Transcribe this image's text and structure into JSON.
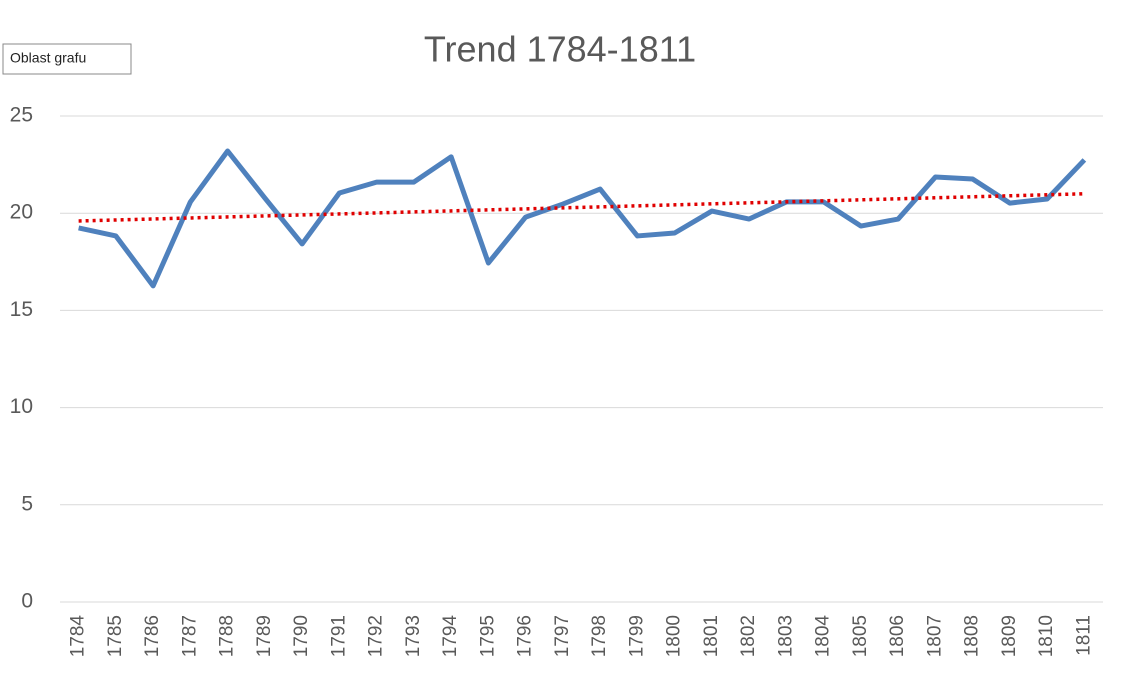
{
  "chart_data": {
    "type": "line",
    "title": "Trend 1784-1811",
    "tooltip": "Oblast grafu",
    "categories": [
      "1784",
      "1785",
      "1786",
      "1787",
      "1788",
      "1789",
      "1790",
      "1791",
      "1792",
      "1793",
      "1794",
      "1795",
      "1796",
      "1797",
      "1798",
      "1799",
      "1800",
      "1801",
      "1802",
      "1803",
      "1804",
      "1805",
      "1806",
      "1807",
      "1808",
      "1809",
      "1810",
      "1811"
    ],
    "series": [
      {
        "color": "#4f81bd",
        "values": [
          19.24,
          18.83,
          16.26,
          20.58,
          23.2,
          20.78,
          18.42,
          21.04,
          21.6,
          21.6,
          22.9,
          17.44,
          19.8,
          20.47,
          21.24,
          18.83,
          18.98,
          20.11,
          19.7,
          20.58,
          20.58,
          19.34,
          19.7,
          21.86,
          21.76,
          20.52,
          20.73,
          22.74
        ]
      }
    ],
    "trendline": {
      "start": 19.6,
      "end": 21.0,
      "color": "#e00000"
    },
    "ylim": [
      0,
      25
    ],
    "yticks": [
      0,
      5,
      10,
      15,
      20,
      25
    ],
    "grid": true
  }
}
